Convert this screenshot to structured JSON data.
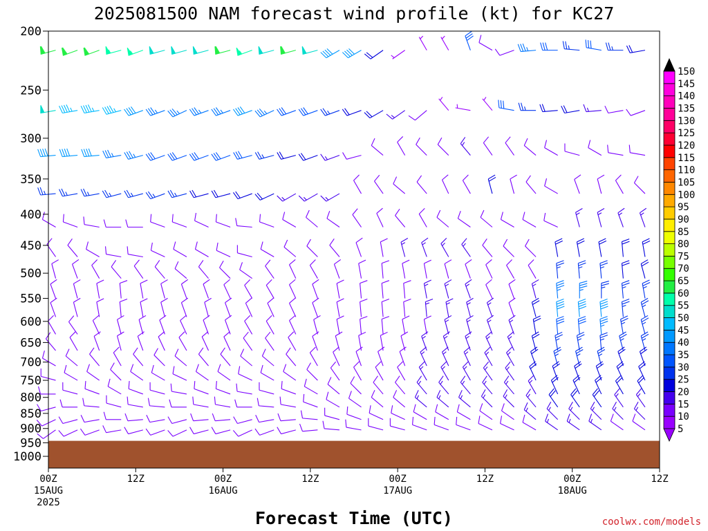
{
  "chart_data": {
    "type": "wind-barb-profile",
    "title": "2025081500 NAM forecast wind profile (kt) for KC27",
    "xlabel": "Forecast Time (UTC)",
    "units": "kt",
    "credit": "coolwx.com/models",
    "y_axis": {
      "quantity": "pressure (hPa)",
      "range": [
        200,
        1000
      ],
      "scale": "log",
      "inverted": true,
      "ticks": [
        "200",
        "250",
        "300",
        "350",
        "400",
        "450",
        "500",
        "550",
        "600",
        "650",
        "700",
        "750",
        "800",
        "850",
        "900",
        "950",
        "1000"
      ]
    },
    "x_axis": {
      "range_hours": [
        0,
        84
      ],
      "start": "2025-08-15T00Z",
      "ticks": [
        {
          "hour": 0,
          "lines": [
            "00Z",
            "15AUG",
            "2025"
          ]
        },
        {
          "hour": 12,
          "lines": [
            "12Z"
          ]
        },
        {
          "hour": 24,
          "lines": [
            "00Z",
            "16AUG"
          ]
        },
        {
          "hour": 36,
          "lines": [
            "12Z"
          ]
        },
        {
          "hour": 48,
          "lines": [
            "00Z",
            "17AUG"
          ]
        },
        {
          "hour": 60,
          "lines": [
            "12Z"
          ]
        },
        {
          "hour": 72,
          "lines": [
            "00Z",
            "18AUG"
          ]
        },
        {
          "hour": 84,
          "lines": [
            "12Z"
          ]
        }
      ]
    },
    "ground_color": "#a0522d",
    "ground_pressure_hpa": 943,
    "colorbar": {
      "levels": [
        5,
        10,
        15,
        20,
        25,
        30,
        35,
        40,
        45,
        50,
        55,
        60,
        65,
        70,
        75,
        80,
        85,
        90,
        95,
        100,
        105,
        110,
        115,
        120,
        125,
        130,
        135,
        140,
        145,
        150
      ],
      "colors": [
        "#9900ff",
        "#7a00ff",
        "#4400ee",
        "#0000dd",
        "#0033ee",
        "#0055ff",
        "#0077ff",
        "#0099ff",
        "#00bbff",
        "#00ddcc",
        "#00ffaa",
        "#22ee44",
        "#33ff00",
        "#77ff00",
        "#bbff00",
        "#eeff00",
        "#ffee00",
        "#ffcc00",
        "#ffaa00",
        "#ff8800",
        "#ff6600",
        "#ff4400",
        "#ff0000",
        "#ff0033",
        "#ff0066",
        "#ff0099",
        "#ff00bb",
        "#ff00dd",
        "#ff00ff",
        "#ee00ff"
      ]
    },
    "barb_hours_step": 3,
    "levels_hpa": [
      215,
      270,
      320,
      370,
      420,
      470,
      510,
      550,
      590,
      630,
      670,
      710,
      750,
      790,
      830,
      870,
      905
    ],
    "profiles": [
      {
        "p": 215,
        "dir": [
          255,
          250,
          250,
          255,
          250,
          255,
          255,
          255,
          255,
          250,
          255,
          255,
          255,
          240,
          240,
          235,
          235,
          330,
          330,
          340,
          300,
          250,
          265,
          270,
          275,
          280,
          270,
          260,
          250,
          230
        ],
        "spd": [
          60,
          60,
          60,
          55,
          55,
          50,
          50,
          50,
          60,
          55,
          50,
          60,
          50,
          40,
          40,
          20,
          5,
          5,
          5,
          30,
          10,
          10,
          35,
          30,
          25,
          30,
          25,
          20,
          15,
          10
        ]
      },
      {
        "p": 270,
        "dir": [
          260,
          260,
          260,
          255,
          250,
          250,
          245,
          250,
          250,
          250,
          245,
          250,
          250,
          250,
          250,
          240,
          235,
          230,
          320,
          280,
          320,
          280,
          270,
          265,
          260,
          265,
          260,
          250,
          240,
          235
        ],
        "spd": [
          50,
          45,
          45,
          45,
          40,
          35,
          35,
          35,
          35,
          40,
          35,
          30,
          30,
          25,
          20,
          20,
          15,
          10,
          5,
          5,
          5,
          30,
          25,
          20,
          20,
          15,
          10,
          10,
          10,
          10
        ]
      },
      {
        "p": 320,
        "dir": [
          265,
          265,
          265,
          260,
          255,
          250,
          250,
          250,
          250,
          255,
          255,
          255,
          250,
          250,
          255,
          310,
          330,
          315,
          315,
          320,
          325,
          325,
          310,
          300,
          285,
          300,
          280,
          280,
          275,
          270
        ],
        "spd": [
          40,
          40,
          40,
          35,
          35,
          30,
          30,
          30,
          30,
          30,
          25,
          20,
          20,
          15,
          10,
          10,
          10,
          10,
          10,
          15,
          10,
          10,
          10,
          10,
          10,
          10,
          10,
          10,
          10,
          10
        ]
      },
      {
        "p": 370,
        "dir": [
          265,
          260,
          260,
          255,
          255,
          250,
          255,
          255,
          255,
          250,
          245,
          240,
          240,
          240,
          330,
          325,
          310,
          320,
          335,
          330,
          345,
          345,
          320,
          300,
          340,
          345,
          330,
          315,
          330,
          340
        ],
        "spd": [
          25,
          25,
          25,
          25,
          25,
          25,
          25,
          20,
          20,
          20,
          20,
          15,
          15,
          15,
          10,
          10,
          10,
          10,
          10,
          10,
          20,
          10,
          10,
          10,
          10,
          10,
          10,
          10,
          10,
          10
        ]
      },
      {
        "p": 420,
        "dir": [
          300,
          290,
          280,
          270,
          270,
          290,
          290,
          295,
          290,
          275,
          290,
          300,
          310,
          305,
          325,
          335,
          320,
          330,
          310,
          305,
          310,
          300,
          300,
          295,
          345,
          345,
          340,
          340,
          345,
          345
        ],
        "spd": [
          10,
          10,
          10,
          10,
          10,
          10,
          10,
          10,
          10,
          10,
          10,
          10,
          10,
          10,
          10,
          10,
          10,
          10,
          10,
          10,
          10,
          10,
          10,
          10,
          15,
          15,
          15,
          15,
          15,
          15
        ]
      },
      {
        "p": 470,
        "dir": [
          325,
          320,
          300,
          280,
          280,
          295,
          300,
          300,
          295,
          285,
          300,
          310,
          315,
          320,
          340,
          350,
          345,
          340,
          330,
          325,
          320,
          315,
          315,
          350,
          350,
          350,
          355,
          350,
          350,
          355
        ],
        "spd": [
          10,
          10,
          10,
          10,
          10,
          10,
          10,
          10,
          10,
          10,
          10,
          10,
          10,
          10,
          10,
          10,
          15,
          15,
          15,
          15,
          10,
          10,
          10,
          20,
          20,
          20,
          20,
          20,
          20,
          20
        ]
      },
      {
        "p": 510,
        "dir": [
          345,
          340,
          330,
          320,
          325,
          320,
          310,
          320,
          315,
          305,
          325,
          335,
          330,
          340,
          350,
          355,
          350,
          350,
          345,
          340,
          335,
          330,
          330,
          355,
          355,
          355,
          355,
          345,
          345,
          350
        ],
        "spd": [
          10,
          10,
          10,
          10,
          10,
          10,
          10,
          10,
          10,
          10,
          10,
          10,
          10,
          10,
          10,
          10,
          10,
          10,
          10,
          10,
          10,
          10,
          10,
          25,
          25,
          25,
          20,
          20,
          20,
          20
        ]
      },
      {
        "p": 550,
        "dir": [
          340,
          345,
          350,
          355,
          350,
          345,
          340,
          340,
          335,
          330,
          330,
          335,
          340,
          350,
          355,
          355,
          355,
          350,
          345,
          340,
          335,
          340,
          345,
          355,
          360,
          360,
          355,
          350,
          350,
          350
        ],
        "spd": [
          10,
          10,
          10,
          10,
          10,
          10,
          10,
          10,
          10,
          10,
          10,
          10,
          10,
          10,
          10,
          10,
          10,
          15,
          15,
          15,
          10,
          10,
          15,
          35,
          35,
          25,
          25,
          25,
          20,
          20
        ]
      },
      {
        "p": 590,
        "dir": [
          340,
          345,
          350,
          355,
          350,
          345,
          340,
          345,
          340,
          335,
          335,
          335,
          340,
          350,
          355,
          355,
          355,
          355,
          350,
          345,
          340,
          340,
          345,
          355,
          355,
          355,
          355,
          345,
          340,
          340
        ],
        "spd": [
          10,
          10,
          10,
          10,
          10,
          10,
          10,
          10,
          10,
          10,
          10,
          10,
          10,
          10,
          10,
          10,
          10,
          15,
          15,
          15,
          15,
          10,
          20,
          40,
          40,
          40,
          25,
          25,
          25,
          25
        ]
      },
      {
        "p": 630,
        "dir": [
          330,
          325,
          335,
          345,
          345,
          340,
          335,
          340,
          340,
          330,
          330,
          335,
          345,
          350,
          355,
          355,
          350,
          350,
          345,
          345,
          340,
          340,
          350,
          355,
          355,
          355,
          350,
          345,
          345,
          340
        ],
        "spd": [
          10,
          10,
          10,
          10,
          10,
          10,
          10,
          10,
          10,
          10,
          10,
          10,
          10,
          10,
          10,
          10,
          10,
          10,
          15,
          15,
          15,
          15,
          20,
          30,
          30,
          35,
          25,
          25,
          25,
          25
        ]
      },
      {
        "p": 670,
        "dir": [
          320,
          330,
          340,
          345,
          340,
          335,
          330,
          335,
          335,
          325,
          325,
          330,
          340,
          345,
          350,
          350,
          345,
          340,
          340,
          340,
          335,
          335,
          345,
          350,
          350,
          355,
          345,
          345,
          345,
          340
        ],
        "spd": [
          10,
          10,
          10,
          10,
          10,
          10,
          10,
          10,
          10,
          10,
          10,
          10,
          10,
          10,
          10,
          10,
          10,
          15,
          15,
          15,
          15,
          15,
          20,
          25,
          25,
          25,
          25,
          25,
          20,
          20
        ]
      },
      {
        "p": 710,
        "dir": [
          300,
          310,
          320,
          330,
          320,
          315,
          310,
          320,
          320,
          310,
          310,
          320,
          330,
          335,
          340,
          340,
          340,
          335,
          335,
          335,
          330,
          330,
          340,
          345,
          345,
          345,
          340,
          340,
          340,
          335
        ],
        "spd": [
          10,
          10,
          10,
          10,
          10,
          10,
          10,
          10,
          10,
          10,
          10,
          10,
          10,
          10,
          10,
          10,
          10,
          15,
          15,
          15,
          15,
          15,
          20,
          25,
          25,
          25,
          20,
          20,
          20,
          20
        ]
      },
      {
        "p": 750,
        "dir": [
          285,
          300,
          305,
          315,
          305,
          300,
          295,
          305,
          305,
          295,
          300,
          305,
          315,
          325,
          330,
          330,
          330,
          330,
          330,
          330,
          325,
          325,
          335,
          340,
          340,
          340,
          335,
          335,
          335,
          330
        ],
        "spd": [
          10,
          10,
          10,
          10,
          10,
          10,
          10,
          10,
          10,
          10,
          10,
          10,
          10,
          10,
          10,
          10,
          10,
          15,
          15,
          15,
          15,
          15,
          20,
          20,
          20,
          20,
          20,
          20,
          20,
          20
        ]
      },
      {
        "p": 790,
        "dir": [
          270,
          285,
          290,
          300,
          290,
          285,
          280,
          290,
          290,
          280,
          285,
          290,
          300,
          310,
          315,
          320,
          320,
          320,
          320,
          320,
          320,
          320,
          330,
          335,
          335,
          335,
          330,
          330,
          330,
          330
        ],
        "spd": [
          10,
          10,
          10,
          10,
          10,
          10,
          10,
          10,
          10,
          10,
          10,
          10,
          10,
          10,
          10,
          10,
          10,
          15,
          15,
          15,
          15,
          15,
          15,
          20,
          20,
          20,
          20,
          20,
          20,
          20
        ]
      },
      {
        "p": 830,
        "dir": [
          255,
          270,
          275,
          285,
          280,
          275,
          270,
          280,
          280,
          270,
          275,
          280,
          290,
          300,
          305,
          310,
          310,
          310,
          310,
          310,
          315,
          315,
          320,
          325,
          325,
          325,
          325,
          325,
          325,
          325
        ],
        "spd": [
          10,
          10,
          10,
          10,
          10,
          10,
          10,
          10,
          10,
          10,
          10,
          10,
          10,
          10,
          10,
          10,
          10,
          15,
          15,
          15,
          15,
          15,
          15,
          20,
          20,
          20,
          15,
          15,
          15,
          15
        ]
      },
      {
        "p": 870,
        "dir": [
          245,
          255,
          260,
          270,
          265,
          260,
          255,
          265,
          265,
          255,
          260,
          265,
          275,
          285,
          290,
          295,
          295,
          300,
          300,
          300,
          305,
          305,
          310,
          315,
          315,
          315,
          315,
          315,
          315,
          315
        ],
        "spd": [
          10,
          10,
          10,
          10,
          10,
          10,
          10,
          10,
          10,
          10,
          10,
          10,
          10,
          10,
          10,
          10,
          10,
          10,
          10,
          10,
          10,
          10,
          15,
          15,
          15,
          15,
          15,
          15,
          15,
          15
        ]
      },
      {
        "p": 905,
        "dir": [
          235,
          245,
          250,
          260,
          255,
          250,
          245,
          255,
          255,
          245,
          250,
          255,
          265,
          275,
          280,
          285,
          285,
          290,
          290,
          290,
          295,
          295,
          300,
          305,
          305,
          305,
          305,
          305,
          305,
          305
        ],
        "spd": [
          10,
          10,
          10,
          10,
          10,
          10,
          10,
          10,
          10,
          10,
          10,
          10,
          10,
          10,
          10,
          10,
          10,
          10,
          10,
          10,
          10,
          10,
          10,
          15,
          15,
          15,
          10,
          10,
          10,
          10
        ]
      }
    ]
  }
}
